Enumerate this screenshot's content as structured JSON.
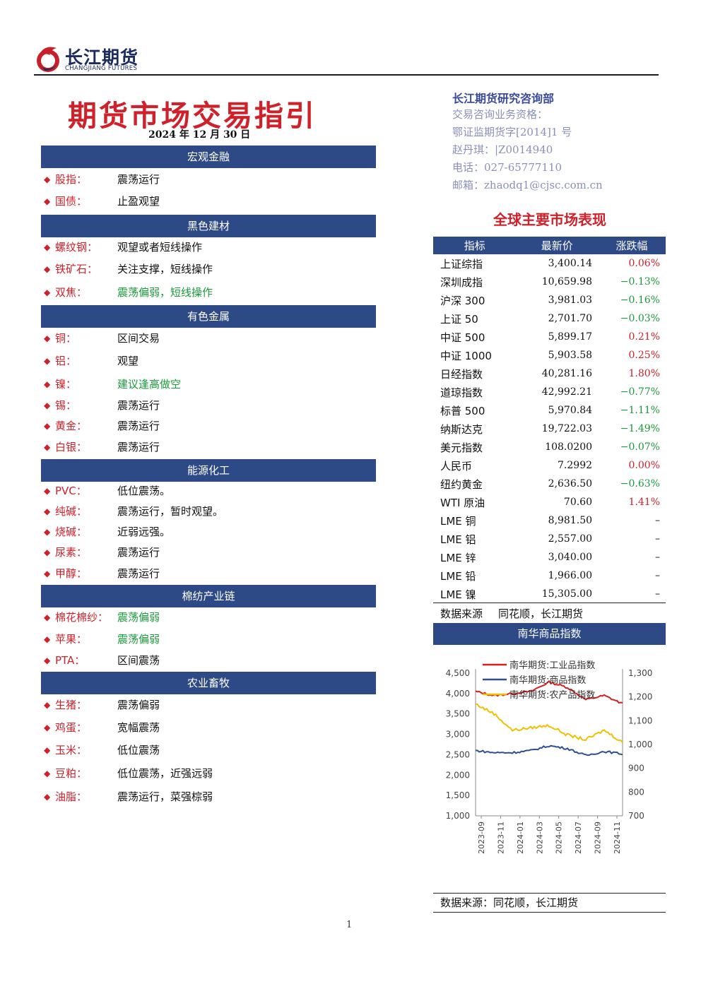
{
  "header": {
    "logo_name": "长江期货",
    "logo_sub": "CHANGJIANG FUTURES",
    "title": "期货市场交易指引",
    "date": "2024 年 12 月 30 日"
  },
  "contact": {
    "dept": "长江期货研究咨询部",
    "qualification": "交易咨询业务资格：",
    "license": "鄂证监期货字[2014]1 号",
    "analyst": "赵丹琪：|Z0014940",
    "phone": "电话：027-65777110",
    "email": "邮箱：zhaodq1@cjsc.com.cn"
  },
  "sections": [
    {
      "title": "宏观金融",
      "items": [
        {
          "name": "股指：",
          "view": "震荡运行",
          "tone": "normal"
        },
        {
          "name": "国债：",
          "view": "止盈观望",
          "tone": "normal"
        }
      ]
    },
    {
      "title": "黑色建材",
      "items": [
        {
          "name": "螺纹钢：",
          "view": "观望或者短线操作",
          "tone": "normal"
        },
        {
          "name": "铁矿石：",
          "view": "关注支撑，短线操作",
          "tone": "normal"
        },
        {
          "name": "双焦：",
          "view": "震荡偏弱，短线操作",
          "tone": "green"
        }
      ]
    },
    {
      "title": "有色金属",
      "items": [
        {
          "name": "铜：",
          "view": "区间交易",
          "tone": "normal"
        },
        {
          "name": "铝：",
          "view": "观望",
          "tone": "normal"
        },
        {
          "name": "镍：",
          "view": "建议逢高做空",
          "tone": "green"
        },
        {
          "name": "锡：",
          "view": "震荡运行",
          "tone": "normal"
        },
        {
          "name": "黄金：",
          "view": "震荡运行",
          "tone": "normal"
        },
        {
          "name": "白银：",
          "view": "震荡运行",
          "tone": "normal"
        }
      ]
    },
    {
      "title": "能源化工",
      "items": [
        {
          "name": "PVC：",
          "view": "低位震荡。",
          "tone": "normal"
        },
        {
          "name": "纯碱：",
          "view": "震荡运行，暂时观望。",
          "tone": "normal"
        },
        {
          "name": "烧碱：",
          "view": "近弱远强。",
          "tone": "normal"
        },
        {
          "name": "尿素：",
          "view": "震荡运行",
          "tone": "normal"
        },
        {
          "name": "甲醇：",
          "view": "震荡运行",
          "tone": "normal"
        }
      ]
    },
    {
      "title": "棉纺产业链",
      "items": [
        {
          "name": "棉花棉纱：",
          "view": "震荡偏弱",
          "tone": "green"
        },
        {
          "name": "苹果：",
          "view": "震荡偏弱",
          "tone": "green"
        },
        {
          "name": "PTA：",
          "view": "区间震荡",
          "tone": "normal"
        }
      ]
    },
    {
      "title": "农业畜牧",
      "items": [
        {
          "name": "生猪：",
          "view": "震荡偏弱",
          "tone": "normal"
        },
        {
          "name": "鸡蛋：",
          "view": "宽幅震荡",
          "tone": "normal"
        },
        {
          "name": "玉米：",
          "view": "低位震荡",
          "tone": "normal"
        },
        {
          "name": "豆粕：",
          "view": "低位震荡，近强远弱",
          "tone": "normal"
        },
        {
          "name": "油脂：",
          "view": "震荡运行，菜强棕弱",
          "tone": "normal"
        }
      ]
    }
  ],
  "market": {
    "title": "全球主要市场表现",
    "columns": [
      "指标",
      "最新价",
      "涨跌幅"
    ],
    "rows": [
      {
        "name": "上证综指",
        "price": "3,400.14",
        "change": "0.06%",
        "dir": "up"
      },
      {
        "name": "深圳成指",
        "price": "10,659.98",
        "change": "−0.13%",
        "dir": "down"
      },
      {
        "name": "沪深 300",
        "price": "3,981.03",
        "change": "−0.16%",
        "dir": "down"
      },
      {
        "name": "上证 50",
        "price": "2,701.70",
        "change": "−0.03%",
        "dir": "down"
      },
      {
        "name": "中证 500",
        "price": "5,899.17",
        "change": "0.21%",
        "dir": "up"
      },
      {
        "name": "中证 1000",
        "price": "5,903.58",
        "change": "0.25%",
        "dir": "up"
      },
      {
        "name": "日经指数",
        "price": "40,281.16",
        "change": "1.80%",
        "dir": "up"
      },
      {
        "name": "道琼指数",
        "price": "42,992.21",
        "change": "−0.77%",
        "dir": "down"
      },
      {
        "name": "标普 500",
        "price": "5,970.84",
        "change": "−1.11%",
        "dir": "down"
      },
      {
        "name": "纳斯达克",
        "price": "19,722.03",
        "change": "−1.49%",
        "dir": "down"
      },
      {
        "name": "美元指数",
        "price": "108.0200",
        "change": "−0.07%",
        "dir": "down"
      },
      {
        "name": "人民币",
        "price": "7.2992",
        "change": "0.00%",
        "dir": "up"
      },
      {
        "name": "纽约黄金",
        "price": "2,636.50",
        "change": "−0.63%",
        "dir": "down"
      },
      {
        "name": "WTI 原油",
        "price": "70.60",
        "change": "1.41%",
        "dir": "up"
      },
      {
        "name": "LME 铜",
        "price": "8,981.50",
        "change": "–",
        "dir": "flat"
      },
      {
        "name": "LME 铝",
        "price": "2,557.00",
        "change": "–",
        "dir": "flat"
      },
      {
        "name": "LME 锌",
        "price": "3,040.00",
        "change": "–",
        "dir": "flat"
      },
      {
        "name": "LME 铅",
        "price": "1,966.00",
        "change": "–",
        "dir": "flat"
      },
      {
        "name": "LME 镍",
        "price": "15,305.00",
        "change": "–",
        "dir": "flat"
      }
    ],
    "source_label": "数据来源",
    "source_value": "同花顺，长江期货"
  },
  "nanhua": {
    "header": "南华商品指数",
    "source": "数据来源：同花顺，长江期货"
  },
  "colors": {
    "header_bg": "#2e4a86",
    "title_red": "#d0202a",
    "up": "#d0202a",
    "down": "#1a9a3a",
    "industrial": "#d81e1e",
    "commodity": "#2f4f8f",
    "agricultural": "#f0c000"
  },
  "chart_data": {
    "type": "line",
    "title": "",
    "x": [
      "2023-09",
      "2023-11",
      "2024-01",
      "2024-03",
      "2024-05",
      "2024-07",
      "2024-09",
      "2024-11",
      "2024-12"
    ],
    "left_axis": {
      "ylim": [
        1000,
        4500
      ],
      "ticks": [
        "1,000",
        "1,500",
        "2,000",
        "2,500",
        "3,000",
        "3,500",
        "4,000",
        "4,500"
      ]
    },
    "right_axis": {
      "ylim": [
        700,
        1300
      ],
      "ticks": [
        "700",
        "800",
        "900",
        "1,000",
        "1,100",
        "1,200",
        "1,300"
      ]
    },
    "x_ticks": [
      "2023-09",
      "2023-11",
      "2024-01",
      "2024-03",
      "2024-05",
      "2024-07",
      "2024-09",
      "2024-11"
    ],
    "series": [
      {
        "name": "南华期货:工业品指数",
        "axis": "left",
        "color": "#d81e1e",
        "values": [
          4050,
          3950,
          4000,
          4050,
          4280,
          4150,
          3850,
          3950,
          3750
        ]
      },
      {
        "name": "南华期货:商品指数",
        "axis": "left",
        "color": "#2f4f8f",
        "values": [
          2600,
          2550,
          2550,
          2600,
          2720,
          2650,
          2480,
          2580,
          2520
        ]
      },
      {
        "name": "南华期货:农产品指数",
        "axis": "right",
        "color": "#f0c000",
        "values": [
          1170,
          1130,
          1060,
          1070,
          1080,
          1040,
          1020,
          1060,
          1010
        ]
      }
    ],
    "legend": "top",
    "grid": false
  }
}
